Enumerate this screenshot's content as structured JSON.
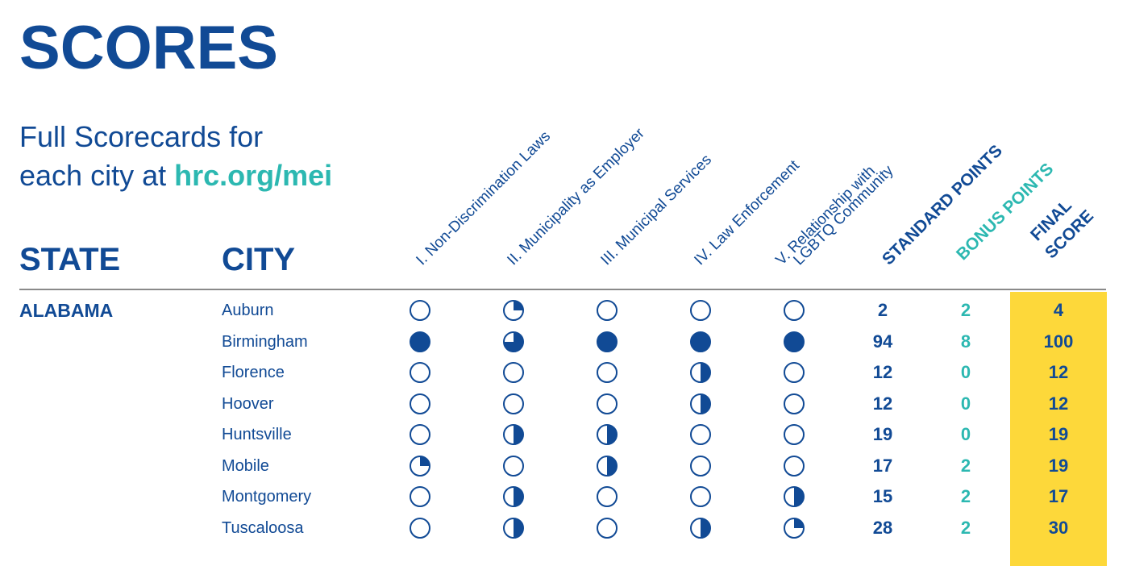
{
  "title": "SCORES",
  "subtitle": {
    "line1": "Full Scorecards for",
    "line2_prefix": "each city at ",
    "link": "hrc.org/mei"
  },
  "headers": {
    "state": "STATE",
    "city": "CITY",
    "categories": [
      "I. Non-Discrimination Laws",
      "II. Municipality as Employer",
      "III. Municipal Services",
      "IV. Law Enforcement",
      "V. Relationship with",
      "LGBTQ Community"
    ],
    "standard_points": "STANDARD POINTS",
    "bonus_points": "BONUS POINTS",
    "final_score_line1": "FINAL",
    "final_score_line2": "SCORE"
  },
  "colors": {
    "navy": "#114a95",
    "teal": "#2cb8b1",
    "yellow": "#fdd83a"
  },
  "state": "ALABAMA",
  "rows": [
    {
      "city": "Auburn",
      "fills": [
        0,
        0.25,
        0,
        0,
        0
      ],
      "standard": "2",
      "bonus": "2",
      "final": "4"
    },
    {
      "city": "Birmingham",
      "fills": [
        1,
        0.75,
        1,
        1,
        1
      ],
      "standard": "94",
      "bonus": "8",
      "final": "100"
    },
    {
      "city": "Florence",
      "fills": [
        0,
        0,
        0,
        0.5,
        0
      ],
      "standard": "12",
      "bonus": "0",
      "final": "12"
    },
    {
      "city": "Hoover",
      "fills": [
        0,
        0,
        0,
        0.5,
        0
      ],
      "standard": "12",
      "bonus": "0",
      "final": "12"
    },
    {
      "city": "Huntsville",
      "fills": [
        0,
        0.5,
        0.5,
        0,
        0
      ],
      "standard": "19",
      "bonus": "0",
      "final": "19"
    },
    {
      "city": "Mobile",
      "fills": [
        0.25,
        0,
        0.5,
        0,
        0
      ],
      "standard": "17",
      "bonus": "2",
      "final": "19"
    },
    {
      "city": "Montgomery",
      "fills": [
        0,
        0.5,
        0,
        0,
        0.5
      ],
      "standard": "15",
      "bonus": "2",
      "final": "17"
    },
    {
      "city": "Tuscaloosa",
      "fills": [
        0,
        0.5,
        0,
        0.5,
        0.25
      ],
      "standard": "28",
      "bonus": "2",
      "final": "30"
    }
  ]
}
